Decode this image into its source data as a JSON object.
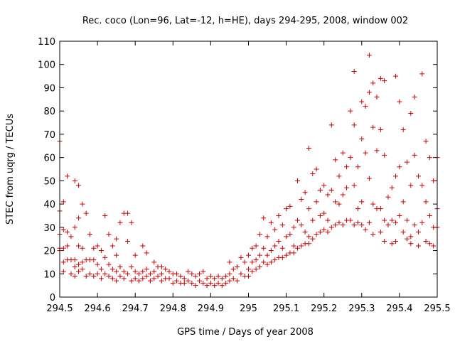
{
  "chart_data": {
    "type": "scatter",
    "title": "Rec. coco (Lon=96, Lat=-12, h=HE), days 294-295, 2008, window 002",
    "xlabel": "GPS time / Days of year 2008",
    "ylabel": "STEC from uqrg / TECUs",
    "xlim": [
      294.5,
      295.5
    ],
    "ylim": [
      0,
      110
    ],
    "xticks": [
      "294.5",
      "294.6",
      "294.7",
      "294.8",
      "294.9",
      "295",
      "295.1",
      "295.2",
      "295.3",
      "295.4",
      "295.5"
    ],
    "yticks": [
      "0",
      "10",
      "20",
      "30",
      "40",
      "50",
      "60",
      "70",
      "80",
      "90",
      "100",
      "110"
    ],
    "grid": false,
    "legend": "none",
    "marker": "plus",
    "color": "#cc0000",
    "points": [
      [
        294.5,
        67
      ],
      [
        294.5,
        37
      ],
      [
        294.5,
        27
      ],
      [
        294.5,
        21
      ],
      [
        294.5,
        20
      ],
      [
        294.51,
        41
      ],
      [
        294.51,
        29
      ],
      [
        294.51,
        21
      ],
      [
        294.51,
        15
      ],
      [
        294.51,
        11
      ],
      [
        294.52,
        52
      ],
      [
        294.52,
        28
      ],
      [
        294.52,
        22
      ],
      [
        294.52,
        16
      ],
      [
        294.53,
        26
      ],
      [
        294.53,
        16
      ],
      [
        294.53,
        10
      ],
      [
        294.54,
        50
      ],
      [
        294.54,
        30
      ],
      [
        294.54,
        16
      ],
      [
        294.54,
        13
      ],
      [
        294.54,
        9
      ],
      [
        294.55,
        48
      ],
      [
        294.55,
        34
      ],
      [
        294.55,
        22
      ],
      [
        294.55,
        14
      ],
      [
        294.55,
        11
      ],
      [
        294.56,
        40
      ],
      [
        294.56,
        21
      ],
      [
        294.56,
        15
      ],
      [
        294.56,
        12
      ],
      [
        294.57,
        36
      ],
      [
        294.57,
        16
      ],
      [
        294.57,
        9
      ],
      [
        294.58,
        27
      ],
      [
        294.58,
        16
      ],
      [
        294.58,
        10
      ],
      [
        294.59,
        21
      ],
      [
        294.59,
        16
      ],
      [
        294.59,
        9
      ],
      [
        294.6,
        22
      ],
      [
        294.6,
        14
      ],
      [
        294.6,
        10
      ],
      [
        294.61,
        20
      ],
      [
        294.61,
        12
      ],
      [
        294.61,
        8
      ],
      [
        294.62,
        35
      ],
      [
        294.62,
        17
      ],
      [
        294.62,
        10
      ],
      [
        294.63,
        27
      ],
      [
        294.63,
        14
      ],
      [
        294.63,
        9
      ],
      [
        294.64,
        22
      ],
      [
        294.64,
        12
      ],
      [
        294.64,
        8
      ],
      [
        294.65,
        25
      ],
      [
        294.65,
        18
      ],
      [
        294.65,
        11
      ],
      [
        294.65,
        7
      ],
      [
        294.66,
        32
      ],
      [
        294.66,
        13
      ],
      [
        294.66,
        9
      ],
      [
        294.67,
        36
      ],
      [
        294.67,
        11
      ],
      [
        294.67,
        8
      ],
      [
        294.68,
        24
      ],
      [
        294.68,
        36
      ],
      [
        294.68,
        10
      ],
      [
        294.69,
        32
      ],
      [
        294.69,
        13
      ],
      [
        294.69,
        7
      ],
      [
        294.7,
        18
      ],
      [
        294.7,
        11
      ],
      [
        294.7,
        8
      ],
      [
        294.71,
        10
      ],
      [
        294.71,
        7
      ],
      [
        294.72,
        22
      ],
      [
        294.72,
        11
      ],
      [
        294.72,
        8
      ],
      [
        294.73,
        19
      ],
      [
        294.73,
        12
      ],
      [
        294.73,
        9
      ],
      [
        294.74,
        10
      ],
      [
        294.74,
        7
      ],
      [
        294.75,
        15
      ],
      [
        294.75,
        11
      ],
      [
        294.75,
        8
      ],
      [
        294.76,
        13
      ],
      [
        294.76,
        9
      ],
      [
        294.77,
        13
      ],
      [
        294.77,
        10
      ],
      [
        294.77,
        7
      ],
      [
        294.78,
        12
      ],
      [
        294.78,
        8
      ],
      [
        294.79,
        11
      ],
      [
        294.79,
        8
      ],
      [
        294.8,
        10
      ],
      [
        294.8,
        6
      ],
      [
        294.81,
        10
      ],
      [
        294.81,
        7
      ],
      [
        294.82,
        9
      ],
      [
        294.82,
        6
      ],
      [
        294.83,
        8
      ],
      [
        294.83,
        6
      ],
      [
        294.84,
        11
      ],
      [
        294.84,
        7
      ],
      [
        294.85,
        10
      ],
      [
        294.85,
        6
      ],
      [
        294.86,
        9
      ],
      [
        294.86,
        5
      ],
      [
        294.87,
        10
      ],
      [
        294.87,
        7
      ],
      [
        294.88,
        11
      ],
      [
        294.88,
        6
      ],
      [
        294.89,
        8
      ],
      [
        294.89,
        5
      ],
      [
        294.9,
        9
      ],
      [
        294.9,
        6
      ],
      [
        294.91,
        8
      ],
      [
        294.91,
        5
      ],
      [
        294.92,
        9
      ],
      [
        294.92,
        6
      ],
      [
        294.93,
        8
      ],
      [
        294.93,
        5
      ],
      [
        294.94,
        9
      ],
      [
        294.94,
        6
      ],
      [
        294.95,
        15
      ],
      [
        294.95,
        10
      ],
      [
        294.95,
        7
      ],
      [
        294.96,
        12
      ],
      [
        294.96,
        8
      ],
      [
        294.97,
        13
      ],
      [
        294.97,
        7
      ],
      [
        294.98,
        17
      ],
      [
        294.98,
        10
      ],
      [
        294.99,
        15
      ],
      [
        294.99,
        9
      ],
      [
        295.0,
        18
      ],
      [
        295.0,
        12
      ],
      [
        295.0,
        9
      ],
      [
        295.01,
        21
      ],
      [
        295.01,
        15
      ],
      [
        295.01,
        11
      ],
      [
        295.02,
        22
      ],
      [
        295.02,
        16
      ],
      [
        295.02,
        12
      ],
      [
        295.03,
        27
      ],
      [
        295.03,
        18
      ],
      [
        295.03,
        13
      ],
      [
        295.04,
        34
      ],
      [
        295.04,
        21
      ],
      [
        295.04,
        15
      ],
      [
        295.05,
        26
      ],
      [
        295.05,
        18
      ],
      [
        295.05,
        14
      ],
      [
        295.06,
        32
      ],
      [
        295.06,
        20
      ],
      [
        295.06,
        15
      ],
      [
        295.07,
        29
      ],
      [
        295.07,
        22
      ],
      [
        295.07,
        16
      ],
      [
        295.08,
        35
      ],
      [
        295.08,
        24
      ],
      [
        295.08,
        17
      ],
      [
        295.09,
        31
      ],
      [
        295.09,
        21
      ],
      [
        295.09,
        17
      ],
      [
        295.1,
        38
      ],
      [
        295.1,
        26
      ],
      [
        295.1,
        18
      ],
      [
        295.11,
        39
      ],
      [
        295.11,
        27
      ],
      [
        295.11,
        19
      ],
      [
        295.12,
        30
      ],
      [
        295.12,
        22
      ],
      [
        295.12,
        19
      ],
      [
        295.13,
        50
      ],
      [
        295.13,
        33
      ],
      [
        295.13,
        21
      ],
      [
        295.14,
        42
      ],
      [
        295.14,
        31
      ],
      [
        295.14,
        22
      ],
      [
        295.15,
        45
      ],
      [
        295.15,
        28
      ],
      [
        295.15,
        23
      ],
      [
        295.16,
        64
      ],
      [
        295.16,
        38
      ],
      [
        295.16,
        26
      ],
      [
        295.16,
        23
      ],
      [
        295.17,
        53
      ],
      [
        295.17,
        33
      ],
      [
        295.17,
        25
      ],
      [
        295.18,
        55
      ],
      [
        295.18,
        41
      ],
      [
        295.18,
        27
      ],
      [
        295.19,
        46
      ],
      [
        295.19,
        35
      ],
      [
        295.19,
        28
      ],
      [
        295.2,
        48
      ],
      [
        295.2,
        36
      ],
      [
        295.2,
        29
      ],
      [
        295.21,
        44
      ],
      [
        295.21,
        33
      ],
      [
        295.21,
        28
      ],
      [
        295.22,
        74
      ],
      [
        295.22,
        46
      ],
      [
        295.22,
        30
      ],
      [
        295.23,
        59
      ],
      [
        295.23,
        41
      ],
      [
        295.23,
        31
      ],
      [
        295.24,
        52
      ],
      [
        295.24,
        40
      ],
      [
        295.24,
        32
      ],
      [
        295.25,
        62
      ],
      [
        295.25,
        44
      ],
      [
        295.25,
        31
      ],
      [
        295.26,
        56
      ],
      [
        295.26,
        47
      ],
      [
        295.26,
        33
      ],
      [
        295.27,
        80
      ],
      [
        295.27,
        60
      ],
      [
        295.27,
        33
      ],
      [
        295.28,
        97
      ],
      [
        295.28,
        74
      ],
      [
        295.28,
        48
      ],
      [
        295.28,
        31
      ],
      [
        295.29,
        56
      ],
      [
        295.29,
        38
      ],
      [
        295.29,
        32
      ],
      [
        295.3,
        84
      ],
      [
        295.3,
        68
      ],
      [
        295.3,
        41
      ],
      [
        295.3,
        31
      ],
      [
        295.31,
        82
      ],
      [
        295.31,
        62
      ],
      [
        295.31,
        29
      ],
      [
        295.32,
        104
      ],
      [
        295.32,
        88
      ],
      [
        295.32,
        51
      ],
      [
        295.32,
        32
      ],
      [
        295.33,
        92
      ],
      [
        295.33,
        73
      ],
      [
        295.33,
        40
      ],
      [
        295.33,
        27
      ],
      [
        295.34,
        86
      ],
      [
        295.34,
        63
      ],
      [
        295.34,
        38
      ],
      [
        295.35,
        94
      ],
      [
        295.35,
        72
      ],
      [
        295.35,
        38
      ],
      [
        295.35,
        28
      ],
      [
        295.36,
        93
      ],
      [
        295.36,
        61
      ],
      [
        295.36,
        33
      ],
      [
        295.36,
        24
      ],
      [
        295.37,
        43
      ],
      [
        295.37,
        31
      ],
      [
        295.38,
        47
      ],
      [
        295.38,
        33
      ],
      [
        295.38,
        23
      ],
      [
        295.39,
        95
      ],
      [
        295.39,
        52
      ],
      [
        295.39,
        32
      ],
      [
        295.39,
        24
      ],
      [
        295.4,
        84
      ],
      [
        295.4,
        56
      ],
      [
        295.4,
        35
      ],
      [
        295.41,
        72
      ],
      [
        295.41,
        41
      ],
      [
        295.41,
        28
      ],
      [
        295.42,
        58
      ],
      [
        295.42,
        33
      ],
      [
        295.42,
        25
      ],
      [
        295.43,
        79
      ],
      [
        295.43,
        48
      ],
      [
        295.43,
        26
      ],
      [
        295.43,
        23
      ],
      [
        295.44,
        86
      ],
      [
        295.44,
        61
      ],
      [
        295.44,
        31
      ],
      [
        295.45,
        52
      ],
      [
        295.45,
        28
      ],
      [
        295.45,
        22
      ],
      [
        295.46,
        96
      ],
      [
        295.46,
        48
      ],
      [
        295.46,
        32
      ],
      [
        295.47,
        67
      ],
      [
        295.47,
        41
      ],
      [
        295.47,
        24
      ],
      [
        295.48,
        60
      ],
      [
        295.48,
        35
      ],
      [
        295.48,
        23
      ],
      [
        295.49,
        50
      ],
      [
        295.49,
        30
      ],
      [
        295.49,
        22
      ],
      [
        295.5,
        60
      ],
      [
        295.5,
        38
      ],
      [
        295.5,
        30
      ]
    ]
  }
}
